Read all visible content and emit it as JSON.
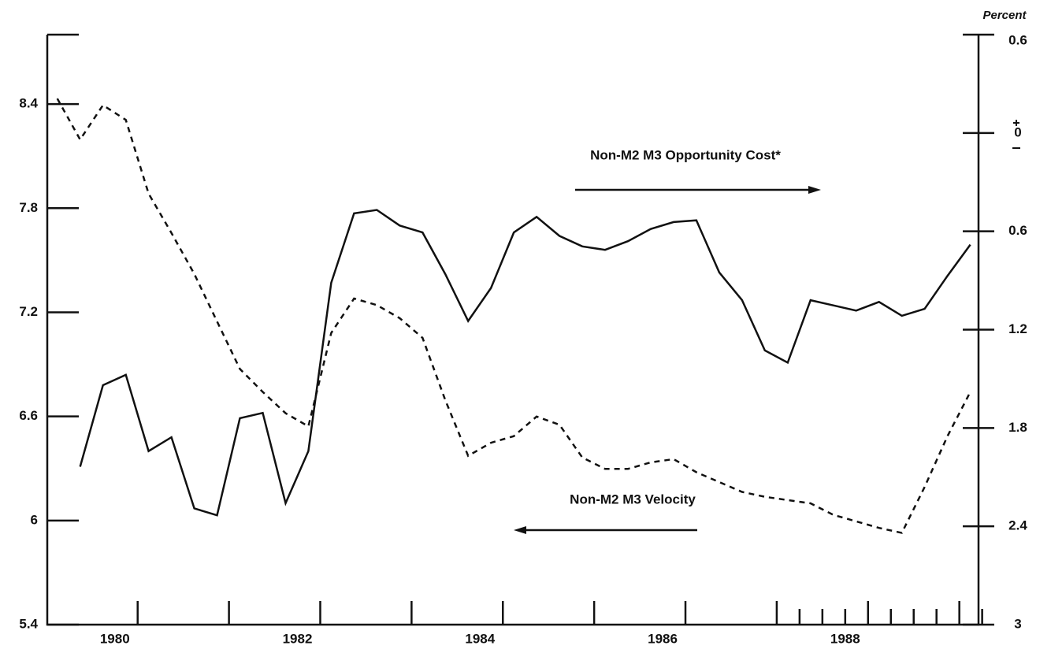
{
  "chart_data": {
    "type": "line",
    "y2_label": "Percent",
    "annotations": [
      "Non-M2 M3 Opportunity Cost*",
      "Non-M2 M3 Velocity"
    ],
    "xlim": [
      1979.26,
      1989.46
    ],
    "xticks": [
      1980,
      1982,
      1984,
      1986,
      1988
    ],
    "xminor": [
      1980.25,
      1981.25,
      1982.25,
      1983.25,
      1984.25,
      1985.25,
      1986.25,
      1987.25,
      1987.5,
      1987.75,
      1988,
      1988.25,
      1988.5,
      1988.75,
      1989,
      1989.25,
      1989.5
    ],
    "ylim": [
      5.4,
      8.8
    ],
    "yticks": [
      5.4,
      6,
      6.6,
      7.2,
      7.8,
      8.4
    ],
    "y2lim": [
      -3,
      0.6
    ],
    "y2ticks": [
      {
        "value": -3,
        "label": "3"
      },
      {
        "value": -2.4,
        "label": "2.4"
      },
      {
        "value": -1.8,
        "label": "1.8"
      },
      {
        "value": -1.2,
        "label": "1.2"
      },
      {
        "value": -0.6,
        "label": "0.6"
      },
      0,
      0.6
    ],
    "series": [
      {
        "name": "Non-M2 M3 Velocity",
        "color": "#111111",
        "dash": false,
        "x": [
          1979.62,
          1979.87,
          1980.12,
          1980.37,
          1980.62,
          1980.87,
          1981.12,
          1981.37,
          1981.62,
          1981.87,
          1982.12,
          1982.37,
          1982.62,
          1982.87,
          1983.12,
          1983.37,
          1983.62,
          1983.87,
          1984.12,
          1984.37,
          1984.62,
          1984.87,
          1985.12,
          1985.37,
          1985.62,
          1985.87,
          1986.12,
          1986.37,
          1986.62,
          1986.87,
          1987.12,
          1987.37,
          1987.62,
          1987.87,
          1988.12,
          1988.37,
          1988.62,
          1988.87,
          1989.12,
          1989.37
        ],
        "values": [
          6.31,
          6.78,
          6.84,
          6.4,
          6.48,
          6.07,
          6.03,
          6.59,
          6.62,
          6.1,
          6.4,
          7.37,
          7.77,
          7.79,
          7.7,
          7.66,
          7.42,
          7.15,
          7.34,
          7.66,
          7.75,
          7.64,
          7.58,
          7.56,
          7.61,
          7.68,
          7.72,
          7.73,
          7.43,
          7.27,
          6.98,
          6.91,
          7.27,
          7.24,
          7.21,
          7.26,
          7.18,
          7.22,
          7.41,
          7.59
        ]
      },
      {
        "name": "Non-M2 M3 Opportunity Cost*",
        "color": "#111111",
        "dash": true,
        "axis": "y2",
        "x": [
          1979.37,
          1979.62,
          1979.87,
          1980.12,
          1980.37,
          1980.62,
          1980.87,
          1981.12,
          1981.37,
          1981.62,
          1981.87,
          1982.12,
          1982.37,
          1982.62,
          1982.87,
          1983.12,
          1983.37,
          1983.62,
          1983.87,
          1984.12,
          1984.37,
          1984.62,
          1984.87,
          1985.12,
          1985.37,
          1985.62,
          1985.87,
          1986.12,
          1986.37,
          1986.62,
          1986.87,
          1987.12,
          1987.37,
          1987.62,
          1987.87,
          1988.12,
          1988.37,
          1988.62,
          1988.87,
          1989.12,
          1989.37
        ],
        "values": [
          0.21,
          -0.04,
          0.17,
          0.08,
          -0.37,
          -0.61,
          -0.86,
          -1.15,
          -1.44,
          -1.58,
          -1.71,
          -1.79,
          -1.22,
          -1.01,
          -1.05,
          -1.13,
          -1.25,
          -1.63,
          -1.97,
          -1.89,
          -1.85,
          -1.73,
          -1.78,
          -1.98,
          -2.05,
          -2.05,
          -2.01,
          -1.99,
          -2.07,
          -2.13,
          -2.19,
          -2.22,
          -2.24,
          -2.26,
          -2.33,
          -2.37,
          -2.41,
          -2.44,
          -2.16,
          -1.85,
          -1.58
        ]
      }
    ]
  }
}
